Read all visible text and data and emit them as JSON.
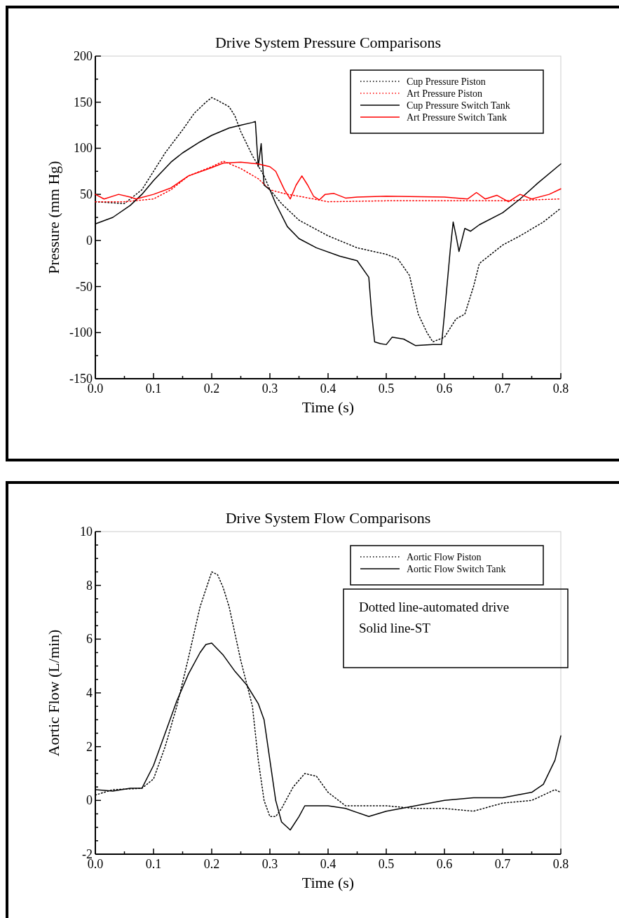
{
  "chart_data": [
    {
      "type": "line",
      "title": "Drive System Pressure Comparisons",
      "xlabel": "Time (s)",
      "ylabel": "Pressure (mm Hg)",
      "xlim": [
        0,
        0.8
      ],
      "ylim": [
        -150,
        200
      ],
      "xticks": [
        {
          "value": 0,
          "label": "0.0"
        },
        {
          "value": 0.05,
          "label": null
        },
        0.1,
        {
          "value": 0.15,
          "label": null
        },
        0.2,
        {
          "value": 0.25,
          "label": null
        },
        0.3,
        {
          "value": 0.35,
          "label": null
        },
        0.4,
        {
          "value": 0.45,
          "label": null
        },
        0.5,
        {
          "value": 0.55,
          "label": null
        },
        0.6,
        {
          "value": 0.65,
          "label": null
        },
        0.7,
        {
          "value": 0.75,
          "label": null
        },
        0.8
      ],
      "yticks": [
        -150,
        {
          "value": -125,
          "label": null
        },
        -100,
        {
          "value": -75,
          "label": null
        },
        -50,
        {
          "value": -25,
          "label": null
        },
        0,
        {
          "value": 25,
          "label": null
        },
        50,
        {
          "value": 75,
          "label": null
        },
        100,
        {
          "value": 125,
          "label": null
        },
        150,
        {
          "value": 175,
          "label": null
        },
        200
      ],
      "legend": "top right",
      "grid": false,
      "series": [
        {
          "name": "Cup Pressure Piston",
          "color": "#000000",
          "line_style": "dotted",
          "x": [
            0,
            0.05,
            0.08,
            0.1,
            0.12,
            0.15,
            0.17,
            0.19,
            0.2,
            0.21,
            0.23,
            0.24,
            0.25,
            0.27,
            0.29,
            0.3,
            0.32,
            0.35,
            0.4,
            0.45,
            0.5,
            0.52,
            0.54,
            0.555,
            0.57,
            0.58,
            0.6,
            0.62,
            0.635,
            0.65,
            0.66,
            0.68,
            0.7,
            0.73,
            0.77,
            0.8
          ],
          "values": [
            42,
            40,
            55,
            75,
            95,
            120,
            138,
            150,
            155,
            152,
            145,
            135,
            118,
            92,
            70,
            55,
            40,
            22,
            5,
            -8,
            -15,
            -20,
            -38,
            -80,
            -100,
            -110,
            -105,
            -85,
            -80,
            -50,
            -25,
            -15,
            -5,
            5,
            20,
            35
          ]
        },
        {
          "name": "Art Pressure Piston",
          "color": "#ff0000",
          "line_style": "dotted",
          "x": [
            0,
            0.05,
            0.1,
            0.13,
            0.16,
            0.2,
            0.22,
            0.25,
            0.28,
            0.3,
            0.33,
            0.35,
            0.4,
            0.5,
            0.6,
            0.7,
            0.8
          ],
          "values": [
            42,
            42,
            45,
            55,
            70,
            80,
            86,
            78,
            67,
            55,
            50,
            48,
            42,
            43,
            43,
            43,
            45
          ]
        },
        {
          "name": "Cup Pressure Switch Tank",
          "color": "#000000",
          "line_style": "solid",
          "x": [
            0,
            0.03,
            0.06,
            0.08,
            0.1,
            0.13,
            0.15,
            0.18,
            0.2,
            0.23,
            0.25,
            0.27,
            0.275,
            0.28,
            0.285,
            0.29,
            0.3,
            0.31,
            0.33,
            0.35,
            0.38,
            0.42,
            0.45,
            0.47,
            0.475,
            0.48,
            0.49,
            0.5,
            0.51,
            0.53,
            0.55,
            0.58,
            0.595,
            0.6,
            0.61,
            0.615,
            0.62,
            0.625,
            0.635,
            0.645,
            0.66,
            0.7,
            0.73,
            0.76,
            0.8
          ],
          "values": [
            18,
            25,
            38,
            50,
            65,
            85,
            95,
            107,
            114,
            122,
            125,
            128,
            129,
            80,
            105,
            60,
            55,
            40,
            15,
            2,
            -8,
            -17,
            -22,
            -40,
            -80,
            -110,
            -112,
            -113,
            -105,
            -107,
            -114,
            -113,
            -113,
            -80,
            -10,
            20,
            5,
            -12,
            13,
            10,
            17,
            30,
            45,
            62,
            83
          ]
        },
        {
          "name": "Art Pressure Switch Tank",
          "color": "#ff0000",
          "line_style": "solid",
          "x": [
            0,
            0.015,
            0.04,
            0.06,
            0.07,
            0.1,
            0.13,
            0.16,
            0.2,
            0.22,
            0.25,
            0.28,
            0.3,
            0.31,
            0.325,
            0.335,
            0.345,
            0.355,
            0.365,
            0.375,
            0.385,
            0.395,
            0.41,
            0.43,
            0.45,
            0.5,
            0.6,
            0.64,
            0.655,
            0.67,
            0.69,
            0.71,
            0.73,
            0.75,
            0.78,
            0.8
          ],
          "values": [
            50,
            45,
            50,
            47,
            45,
            50,
            57,
            70,
            79,
            84,
            85,
            83,
            80,
            75,
            55,
            45,
            60,
            70,
            60,
            48,
            44,
            50,
            51,
            46,
            47,
            48,
            47,
            45,
            52,
            45,
            49,
            42,
            50,
            45,
            50,
            56
          ]
        }
      ]
    },
    {
      "type": "line",
      "title": "Drive System Flow Comparisons",
      "xlabel": "Time (s)",
      "ylabel": "Aortic Flow (L/min)",
      "xlim": [
        0,
        0.8
      ],
      "ylim": [
        -2,
        10
      ],
      "xticks": [
        {
          "value": 0,
          "label": "0.0"
        },
        {
          "value": 0.05,
          "label": null
        },
        0.1,
        {
          "value": 0.15,
          "label": null
        },
        0.2,
        {
          "value": 0.25,
          "label": null
        },
        0.3,
        {
          "value": 0.35,
          "label": null
        },
        0.4,
        {
          "value": 0.45,
          "label": null
        },
        0.5,
        {
          "value": 0.55,
          "label": null
        },
        0.6,
        {
          "value": 0.65,
          "label": null
        },
        0.7,
        {
          "value": 0.75,
          "label": null
        },
        0.8
      ],
      "yticks": [
        -2,
        {
          "value": -1.5,
          "label": null
        },
        {
          "value": -1,
          "label": null
        },
        {
          "value": -0.5,
          "label": null
        },
        0,
        {
          "value": 0.5,
          "label": null
        },
        {
          "value": 1,
          "label": null
        },
        {
          "value": 1.5,
          "label": null
        },
        2,
        {
          "value": 2.5,
          "label": null
        },
        {
          "value": 3,
          "label": null
        },
        {
          "value": 3.5,
          "label": null
        },
        4,
        {
          "value": 4.5,
          "label": null
        },
        {
          "value": 5,
          "label": null
        },
        {
          "value": 5.5,
          "label": null
        },
        6,
        {
          "value": 6.5,
          "label": null
        },
        {
          "value": 7,
          "label": null
        },
        {
          "value": 7.5,
          "label": null
        },
        8,
        {
          "value": 8.5,
          "label": null
        },
        {
          "value": 9,
          "label": null
        },
        {
          "value": 9.5,
          "label": null
        },
        10
      ],
      "legend": "top right",
      "grid": false,
      "annotations": [
        "Dotted line-automated drive",
        "Solid line-ST"
      ],
      "series": [
        {
          "name": "Aortic Flow Piston",
          "color": "#000000",
          "line_style": "dotted",
          "x": [
            0,
            0.03,
            0.08,
            0.1,
            0.12,
            0.14,
            0.16,
            0.18,
            0.2,
            0.21,
            0.22,
            0.23,
            0.25,
            0.27,
            0.28,
            0.29,
            0.3,
            0.31,
            0.32,
            0.34,
            0.36,
            0.38,
            0.4,
            0.43,
            0.5,
            0.55,
            0.6,
            0.65,
            0.7,
            0.75,
            0.79,
            0.8
          ],
          "values": [
            0.2,
            0.4,
            0.45,
            0.8,
            2,
            3.5,
            5.3,
            7.2,
            8.5,
            8.4,
            7.9,
            7.2,
            5.2,
            3.5,
            1.5,
            0,
            -0.6,
            -0.6,
            -0.3,
            0.5,
            1,
            0.9,
            0.3,
            -0.2,
            -0.2,
            -0.3,
            -0.3,
            -0.4,
            -0.1,
            0,
            0.4,
            0.3
          ]
        },
        {
          "name": "Aortic Flow Switch Tank",
          "color": "#000000",
          "line_style": "solid",
          "x": [
            0,
            0.03,
            0.06,
            0.08,
            0.1,
            0.12,
            0.14,
            0.16,
            0.18,
            0.19,
            0.2,
            0.22,
            0.24,
            0.26,
            0.28,
            0.29,
            0.3,
            0.31,
            0.32,
            0.335,
            0.35,
            0.36,
            0.4,
            0.43,
            0.47,
            0.5,
            0.55,
            0.6,
            0.65,
            0.7,
            0.75,
            0.77,
            0.79,
            0.8
          ],
          "values": [
            0.4,
            0.35,
            0.45,
            0.45,
            1.3,
            2.5,
            3.7,
            4.7,
            5.5,
            5.8,
            5.85,
            5.4,
            4.8,
            4.3,
            3.6,
            3,
            1.5,
            0,
            -0.8,
            -1.1,
            -0.6,
            -0.2,
            -0.2,
            -0.3,
            -0.6,
            -0.4,
            -0.2,
            0,
            0.1,
            0.1,
            0.3,
            0.6,
            1.5,
            2.4
          ]
        }
      ]
    }
  ]
}
